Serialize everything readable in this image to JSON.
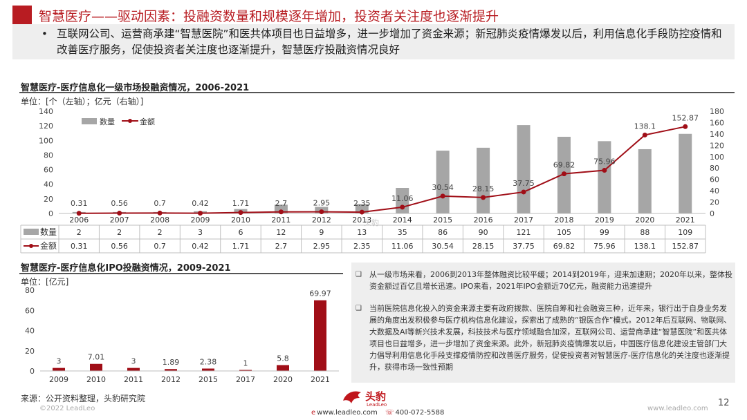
{
  "header": {
    "title": "智慧医疗——驱动因素：投融资数量和规模逐年增加，投资者关注度也逐渐提升",
    "summary_bullet": "•",
    "summary": "互联网公司、运营商承建“智慧医院”和医共体项目也日益增多，进一步增加了资金来源；新冠肺炎疫情爆发以后，利用信息化手段防控疫情和改善医疗服务，促使投资者关注度也逐渐提升，智慧医疗投融资情况良好"
  },
  "chart_data": [
    {
      "type": "bar",
      "title": "智慧医疗-医疗信息化一级市场投融资情况，2006-2021",
      "unit": "单位：[个（左轴）；亿元（右轴）]",
      "categories": [
        "2006",
        "2007",
        "2008",
        "2009",
        "2010",
        "2011",
        "2012",
        "2013",
        "2014",
        "2015",
        "2016",
        "2017",
        "2018",
        "2019",
        "2020",
        "2021"
      ],
      "series": [
        {
          "name": "数量",
          "type": "bar",
          "axis": "left",
          "color": "#a6a6a6",
          "values": [
            2,
            2,
            2,
            3,
            6,
            12,
            9,
            13,
            35,
            86,
            90,
            121,
            105,
            99,
            88,
            109
          ]
        },
        {
          "name": "金额",
          "type": "line",
          "axis": "right",
          "color": "#a00e17",
          "values": [
            0.31,
            0.56,
            0.7,
            0.42,
            1.71,
            2.7,
            2.95,
            2.35,
            11.06,
            30.54,
            28.15,
            37.75,
            69.82,
            75.96,
            138.1,
            152.87
          ]
        }
      ],
      "ylim_left": [
        0,
        140
      ],
      "yticks_left": [
        0,
        20,
        40,
        60,
        80,
        100,
        120,
        140
      ],
      "ylim_right": [
        0,
        180
      ],
      "yticks_right": [
        0,
        20,
        40,
        60,
        80,
        100,
        120,
        140,
        160,
        180
      ],
      "table_labels": [
        "数量",
        "金额"
      ],
      "data_labels": [
        "0.31",
        "0.56",
        "0.7",
        "0.42",
        "1.71",
        "2.7",
        "2.95",
        "2.35",
        "11.06",
        "30.54",
        "28.15",
        "37.75",
        "69.82",
        "75.96",
        "138.1",
        "152.87"
      ],
      "table_row_count": [
        "2",
        "2",
        "2",
        "3",
        "6",
        "12",
        "9",
        "13",
        "35",
        "86",
        "90",
        "121",
        "105",
        "99",
        "88",
        "109"
      ],
      "table_row_amount": [
        "0.31",
        "0.56",
        "0.7",
        "0.42",
        "1.71",
        "2.7",
        "2.95",
        "2.35",
        "11.06",
        "30.54",
        "28.15",
        "37.75",
        "69.82",
        "75.96",
        "138.1",
        "152.87"
      ],
      "legend_position": "top-left",
      "grid": false
    },
    {
      "type": "bar",
      "title": "智慧医疗-医疗信息化IPO投融资情况，2009-2021",
      "unit": "单位：[亿元]",
      "categories": [
        "2009",
        "2010",
        "2011",
        "2012",
        "2015",
        "2017",
        "2020",
        "2021"
      ],
      "values": [
        3,
        7.01,
        3,
        1.89,
        2.38,
        1,
        5.8,
        69.97
      ],
      "data_labels": [
        "3",
        "7.01",
        "3",
        "1.89",
        "2.38",
        "1",
        "5.8",
        "69.97"
      ],
      "color": "#a00e17",
      "ylim": [
        0,
        80
      ],
      "yticks": [
        0,
        20,
        40,
        60,
        80
      ],
      "grid": false
    }
  ],
  "notes": [
    "从一级市场来看，2006到2013年整体融资比较平缓；2014到2019年，迎来加速期；2020年以来，整体投资金额过百亿且增长迅速。IPO来看，2021年IPO金额近70亿元，融资能力迅速提升",
    "当前医院信息化投入的资金来源主要有政府拨款、医院自筹和社会融资三种，近年来，银行出于自身业务发展的角度出发积极参与医疗机构信息化建设，探索出了成熟的“银医合作”模式。2012年后互联网、物联网、大数据及AI等新兴技术发展，科技技术与医疗领域融合加深，互联网公司、运营商承建“智慧医院”和医共体项目也日益增多，进一步增加了资金来源。此外，新冠肺炎疫情爆发以后，中国医疗信息化建设主管部门大力倡导利用信息化手段支撑疫情防控和改善医疗服务，促使投资者对智慧医疗-医疗信息化的关注度也逐渐提升，获得市场一致性预期"
  ],
  "note_bullet": "❑",
  "footer": {
    "source": "来源：公开资料整理，头豹研究院",
    "copyright": "©2022 LeadLeo",
    "page_number": "12",
    "site": "www.leadleo.com",
    "logo_text": "头豹",
    "logo_sub": "LeadLeo",
    "contact_web": "www.leadleo.com",
    "contact_phone": "400-072-5588",
    "watermark": "头豹"
  },
  "colors": {
    "accent": "#b81c22",
    "bar_gray": "#a6a6a6",
    "line_red": "#a00e17",
    "box_gray": "#eeeeee"
  }
}
